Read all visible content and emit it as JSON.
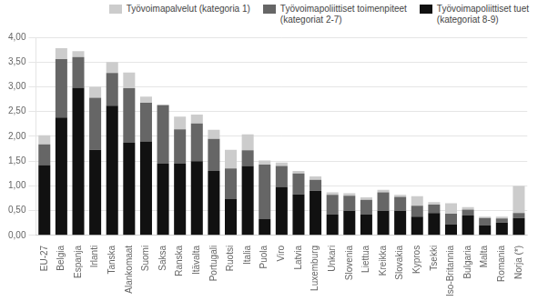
{
  "chart_data": {
    "type": "bar",
    "stacked": true,
    "categories": [
      "EU-27",
      "Belgia",
      "Espanja",
      "Irlanti",
      "Tanska",
      "Alankomaat",
      "Suomi",
      "Saksa",
      "Ranska",
      "Itävalta",
      "Portugali",
      "Ruotsi",
      "Italia",
      "Puola",
      "Viro",
      "Latvia",
      "Luxemburg",
      "Unkari",
      "Slovenia",
      "Liettua",
      "Kreikka",
      "Slovakia",
      "Kypros",
      "Tsekki",
      "Iso-Britannia",
      "Bulgaria",
      "Malta",
      "Romania",
      "Norja (*)"
    ],
    "series": [
      {
        "name": "Työvoimapoliittiset tuet\n(kategoriat 8-9)",
        "color": "#111111",
        "values": [
          1.42,
          2.38,
          2.98,
          1.73,
          2.62,
          1.87,
          1.9,
          1.45,
          1.45,
          1.5,
          1.3,
          0.73,
          1.4,
          0.33,
          0.98,
          0.83,
          0.9,
          0.42,
          0.5,
          0.42,
          0.5,
          0.5,
          0.38,
          0.45,
          0.22,
          0.4,
          0.2,
          0.26,
          0.35
        ]
      },
      {
        "name": "Työvoimapoliittiset toimenpiteet\n(kategoriat 2-7)",
        "color": "#666666",
        "values": [
          0.42,
          1.18,
          0.62,
          1.05,
          0.66,
          1.1,
          0.78,
          1.18,
          0.69,
          0.76,
          0.65,
          0.62,
          0.32,
          1.1,
          0.42,
          0.42,
          0.22,
          0.4,
          0.3,
          0.3,
          0.37,
          0.28,
          0.22,
          0.17,
          0.22,
          0.12,
          0.15,
          0.08,
          0.1
        ]
      },
      {
        "name": "Työvoimapalvelut (kategoria 1)",
        "color": "#cccccc",
        "values": [
          0.18,
          0.22,
          0.12,
          0.22,
          0.22,
          0.32,
          0.12,
          0.0,
          0.26,
          0.18,
          0.18,
          0.38,
          0.32,
          0.08,
          0.07,
          0.05,
          0.07,
          0.05,
          0.05,
          0.05,
          0.05,
          0.04,
          0.19,
          0.05,
          0.21,
          0.05,
          0.03,
          0.04,
          0.55
        ]
      }
    ],
    "ylim": [
      0,
      4.0
    ],
    "yticks": [
      {
        "value": 0.0,
        "label": "0,00"
      },
      {
        "value": 0.5,
        "label": "0,50"
      },
      {
        "value": 1.0,
        "label": "1,00"
      },
      {
        "value": 1.5,
        "label": "1,50"
      },
      {
        "value": 2.0,
        "label": "2,00"
      },
      {
        "value": 2.5,
        "label": "2,50"
      },
      {
        "value": 3.0,
        "label": "3,00"
      },
      {
        "value": 3.5,
        "label": "3,50"
      },
      {
        "value": 4.0,
        "label": "4,00"
      }
    ],
    "grid": true,
    "legend": "upper right"
  }
}
